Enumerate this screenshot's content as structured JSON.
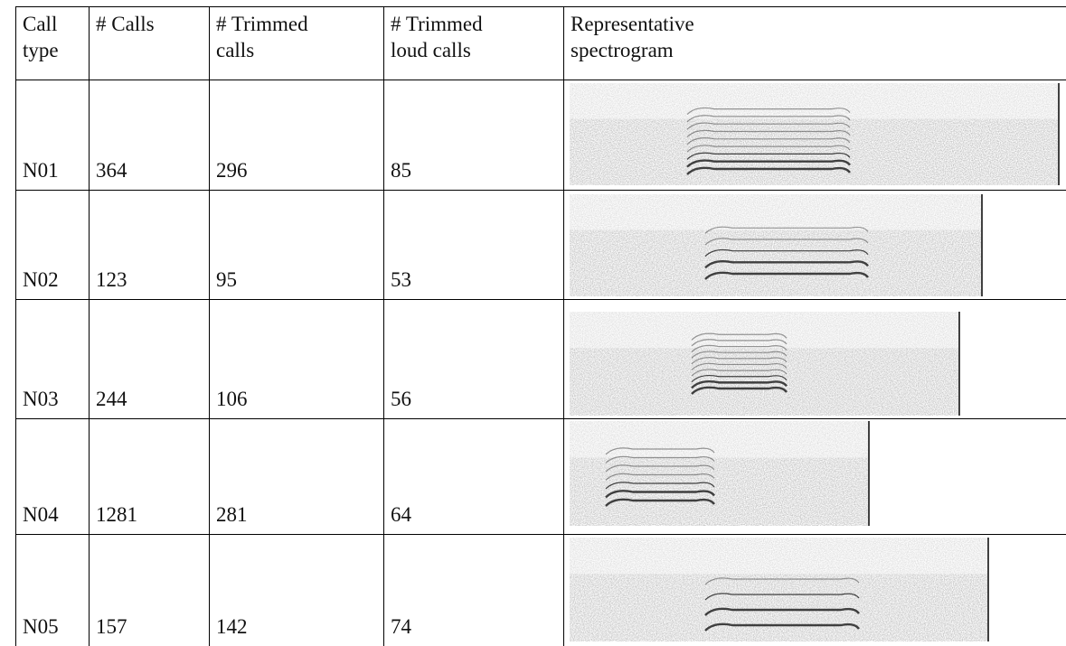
{
  "table": {
    "header": [
      "Call type",
      "# Calls",
      "# Trimmed calls",
      "# Trimmed loud calls",
      "Representative spectrogram"
    ],
    "rows": [
      [
        "N01",
        364,
        296,
        85
      ],
      [
        "N02",
        123,
        95,
        53
      ],
      [
        "N03",
        244,
        106,
        56
      ],
      [
        "N04",
        1281,
        281,
        64
      ],
      [
        "N05",
        157,
        142,
        74
      ]
    ]
  }
}
